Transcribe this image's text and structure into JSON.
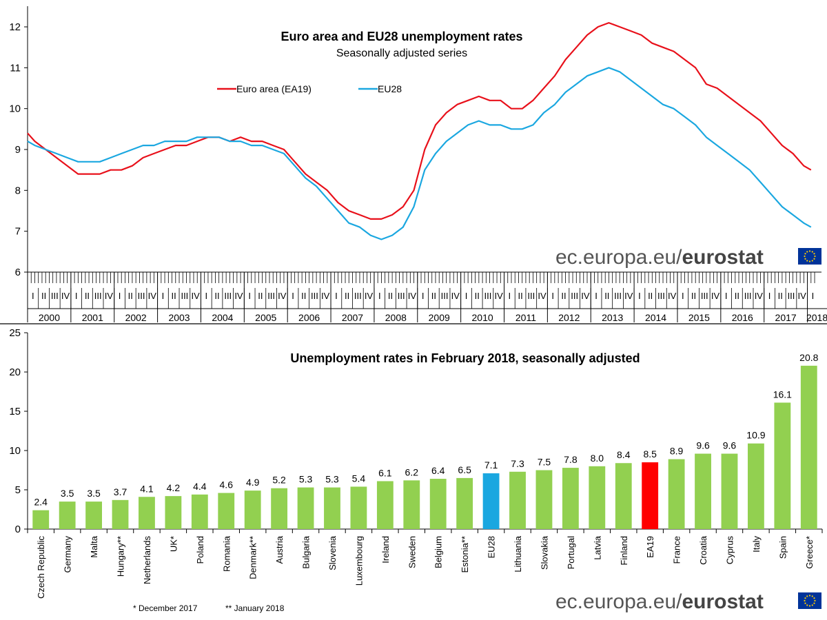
{
  "chart_data": [
    {
      "type": "line",
      "title": "Euro area and EU28 unemployment rates",
      "subtitle": "Seasonally adjusted series",
      "ylim": [
        6,
        12
      ],
      "yticks": [
        "6",
        "7",
        "8",
        "9",
        "10",
        "11",
        "12"
      ],
      "quarter_labels": [
        "I",
        "II",
        "III",
        "IV"
      ],
      "years": [
        "2000",
        "2001",
        "2002",
        "2003",
        "2004",
        "2005",
        "2006",
        "2007",
        "2008",
        "2009",
        "2010",
        "2011",
        "2012",
        "2013",
        "2014",
        "2015",
        "2016",
        "2017",
        "2018"
      ],
      "x_start": "2000-01",
      "x_end": "2018-02",
      "legend_position": "top-left",
      "series": [
        {
          "name": "Euro area (EA19)",
          "color": "#e8101a",
          "points": [
            [
              "2000-01",
              9.4
            ],
            [
              "2000-03",
              9.2
            ],
            [
              "2000-06",
              9.0
            ],
            [
              "2000-09",
              8.8
            ],
            [
              "2000-12",
              8.6
            ],
            [
              "2001-03",
              8.4
            ],
            [
              "2001-06",
              8.4
            ],
            [
              "2001-09",
              8.4
            ],
            [
              "2001-12",
              8.5
            ],
            [
              "2002-03",
              8.5
            ],
            [
              "2002-06",
              8.6
            ],
            [
              "2002-09",
              8.8
            ],
            [
              "2002-12",
              8.9
            ],
            [
              "2003-03",
              9.0
            ],
            [
              "2003-06",
              9.1
            ],
            [
              "2003-09",
              9.1
            ],
            [
              "2003-12",
              9.2
            ],
            [
              "2004-03",
              9.3
            ],
            [
              "2004-06",
              9.3
            ],
            [
              "2004-09",
              9.2
            ],
            [
              "2004-12",
              9.3
            ],
            [
              "2005-03",
              9.2
            ],
            [
              "2005-06",
              9.2
            ],
            [
              "2005-09",
              9.1
            ],
            [
              "2005-12",
              9.0
            ],
            [
              "2006-03",
              8.7
            ],
            [
              "2006-06",
              8.4
            ],
            [
              "2006-09",
              8.2
            ],
            [
              "2006-12",
              8.0
            ],
            [
              "2007-03",
              7.7
            ],
            [
              "2007-06",
              7.5
            ],
            [
              "2007-09",
              7.4
            ],
            [
              "2007-12",
              7.3
            ],
            [
              "2008-03",
              7.3
            ],
            [
              "2008-06",
              7.4
            ],
            [
              "2008-09",
              7.6
            ],
            [
              "2008-12",
              8.0
            ],
            [
              "2009-03",
              9.0
            ],
            [
              "2009-06",
              9.6
            ],
            [
              "2009-09",
              9.9
            ],
            [
              "2009-12",
              10.1
            ],
            [
              "2010-03",
              10.2
            ],
            [
              "2010-06",
              10.3
            ],
            [
              "2010-09",
              10.2
            ],
            [
              "2010-12",
              10.2
            ],
            [
              "2011-03",
              10.0
            ],
            [
              "2011-06",
              10.0
            ],
            [
              "2011-09",
              10.2
            ],
            [
              "2011-12",
              10.5
            ],
            [
              "2012-03",
              10.8
            ],
            [
              "2012-06",
              11.2
            ],
            [
              "2012-09",
              11.5
            ],
            [
              "2012-12",
              11.8
            ],
            [
              "2013-03",
              12.0
            ],
            [
              "2013-06",
              12.1
            ],
            [
              "2013-09",
              12.0
            ],
            [
              "2013-12",
              11.9
            ],
            [
              "2014-03",
              11.8
            ],
            [
              "2014-06",
              11.6
            ],
            [
              "2014-09",
              11.5
            ],
            [
              "2014-12",
              11.4
            ],
            [
              "2015-03",
              11.2
            ],
            [
              "2015-06",
              11.0
            ],
            [
              "2015-09",
              10.6
            ],
            [
              "2015-12",
              10.5
            ],
            [
              "2016-03",
              10.3
            ],
            [
              "2016-06",
              10.1
            ],
            [
              "2016-09",
              9.9
            ],
            [
              "2016-12",
              9.7
            ],
            [
              "2017-03",
              9.4
            ],
            [
              "2017-06",
              9.1
            ],
            [
              "2017-09",
              8.9
            ],
            [
              "2017-12",
              8.6
            ],
            [
              "2018-02",
              8.5
            ]
          ]
        },
        {
          "name": "EU28",
          "color": "#1aa7e0",
          "points": [
            [
              "2000-01",
              9.2
            ],
            [
              "2000-03",
              9.1
            ],
            [
              "2000-06",
              9.0
            ],
            [
              "2000-09",
              8.9
            ],
            [
              "2000-12",
              8.8
            ],
            [
              "2001-03",
              8.7
            ],
            [
              "2001-06",
              8.7
            ],
            [
              "2001-09",
              8.7
            ],
            [
              "2001-12",
              8.8
            ],
            [
              "2002-03",
              8.9
            ],
            [
              "2002-06",
              9.0
            ],
            [
              "2002-09",
              9.1
            ],
            [
              "2002-12",
              9.1
            ],
            [
              "2003-03",
              9.2
            ],
            [
              "2003-06",
              9.2
            ],
            [
              "2003-09",
              9.2
            ],
            [
              "2003-12",
              9.3
            ],
            [
              "2004-03",
              9.3
            ],
            [
              "2004-06",
              9.3
            ],
            [
              "2004-09",
              9.2
            ],
            [
              "2004-12",
              9.2
            ],
            [
              "2005-03",
              9.1
            ],
            [
              "2005-06",
              9.1
            ],
            [
              "2005-09",
              9.0
            ],
            [
              "2005-12",
              8.9
            ],
            [
              "2006-03",
              8.6
            ],
            [
              "2006-06",
              8.3
            ],
            [
              "2006-09",
              8.1
            ],
            [
              "2006-12",
              7.8
            ],
            [
              "2007-03",
              7.5
            ],
            [
              "2007-06",
              7.2
            ],
            [
              "2007-09",
              7.1
            ],
            [
              "2007-12",
              6.9
            ],
            [
              "2008-03",
              6.8
            ],
            [
              "2008-06",
              6.9
            ],
            [
              "2008-09",
              7.1
            ],
            [
              "2008-12",
              7.6
            ],
            [
              "2009-03",
              8.5
            ],
            [
              "2009-06",
              8.9
            ],
            [
              "2009-09",
              9.2
            ],
            [
              "2009-12",
              9.4
            ],
            [
              "2010-03",
              9.6
            ],
            [
              "2010-06",
              9.7
            ],
            [
              "2010-09",
              9.6
            ],
            [
              "2010-12",
              9.6
            ],
            [
              "2011-03",
              9.5
            ],
            [
              "2011-06",
              9.5
            ],
            [
              "2011-09",
              9.6
            ],
            [
              "2011-12",
              9.9
            ],
            [
              "2012-03",
              10.1
            ],
            [
              "2012-06",
              10.4
            ],
            [
              "2012-09",
              10.6
            ],
            [
              "2012-12",
              10.8
            ],
            [
              "2013-03",
              10.9
            ],
            [
              "2013-06",
              11.0
            ],
            [
              "2013-09",
              10.9
            ],
            [
              "2013-12",
              10.7
            ],
            [
              "2014-03",
              10.5
            ],
            [
              "2014-06",
              10.3
            ],
            [
              "2014-09",
              10.1
            ],
            [
              "2014-12",
              10.0
            ],
            [
              "2015-03",
              9.8
            ],
            [
              "2015-06",
              9.6
            ],
            [
              "2015-09",
              9.3
            ],
            [
              "2015-12",
              9.1
            ],
            [
              "2016-03",
              8.9
            ],
            [
              "2016-06",
              8.7
            ],
            [
              "2016-09",
              8.5
            ],
            [
              "2016-12",
              8.2
            ],
            [
              "2017-03",
              7.9
            ],
            [
              "2017-06",
              7.6
            ],
            [
              "2017-09",
              7.4
            ],
            [
              "2017-12",
              7.2
            ],
            [
              "2018-02",
              7.1
            ]
          ]
        }
      ],
      "watermark": "ec.europa.eu/eurostat"
    },
    {
      "type": "bar",
      "title": "Unemployment rates in February 2018, seasonally adjusted",
      "ylim": [
        0,
        25
      ],
      "yticks": [
        "0",
        "5",
        "10",
        "15",
        "20",
        "25"
      ],
      "categories": [
        "Czech Republic",
        "Germany",
        "Malta",
        "Hungary**",
        "Netherlands",
        "UK*",
        "Poland",
        "Romania",
        "Denmark**",
        "Austria",
        "Bulgaria",
        "Slovenia",
        "Luxembourg",
        "Ireland",
        "Sweden",
        "Belgium",
        "Estonia**",
        "EU28",
        "Lithuania",
        "Slovakia",
        "Portugal",
        "Latvia",
        "Finland",
        "EA19",
        "France",
        "Croatia",
        "Cyprus",
        "Italy",
        "Spain",
        "Greece*"
      ],
      "values": [
        2.4,
        3.5,
        3.5,
        3.7,
        4.1,
        4.2,
        4.4,
        4.6,
        4.9,
        5.2,
        5.3,
        5.3,
        5.4,
        6.1,
        6.2,
        6.4,
        6.5,
        7.1,
        7.3,
        7.5,
        7.8,
        8.0,
        8.4,
        8.5,
        8.9,
        9.6,
        9.6,
        10.9,
        16.1,
        20.8
      ],
      "value_labels": [
        "2.4",
        "3.5",
        "3.5",
        "3.7",
        "4.1",
        "4.2",
        "4.4",
        "4.6",
        "4.9",
        "5.2",
        "5.3",
        "5.3",
        "5.4",
        "6.1",
        "6.2",
        "6.4",
        "6.5",
        "7.1",
        "7.3",
        "7.5",
        "7.8",
        "8.0",
        "8.4",
        "8.5",
        "8.9",
        "9.6",
        "9.6",
        "10.9",
        "16.1",
        "20.8"
      ],
      "bar_color": "#92d050",
      "highlight_colors": {
        "EU28": "#1aa7e0",
        "EA19": "#ff0000"
      },
      "footnotes": [
        "* December  2017",
        "** January 2018"
      ],
      "watermark": "ec.europa.eu/eurostat"
    }
  ]
}
